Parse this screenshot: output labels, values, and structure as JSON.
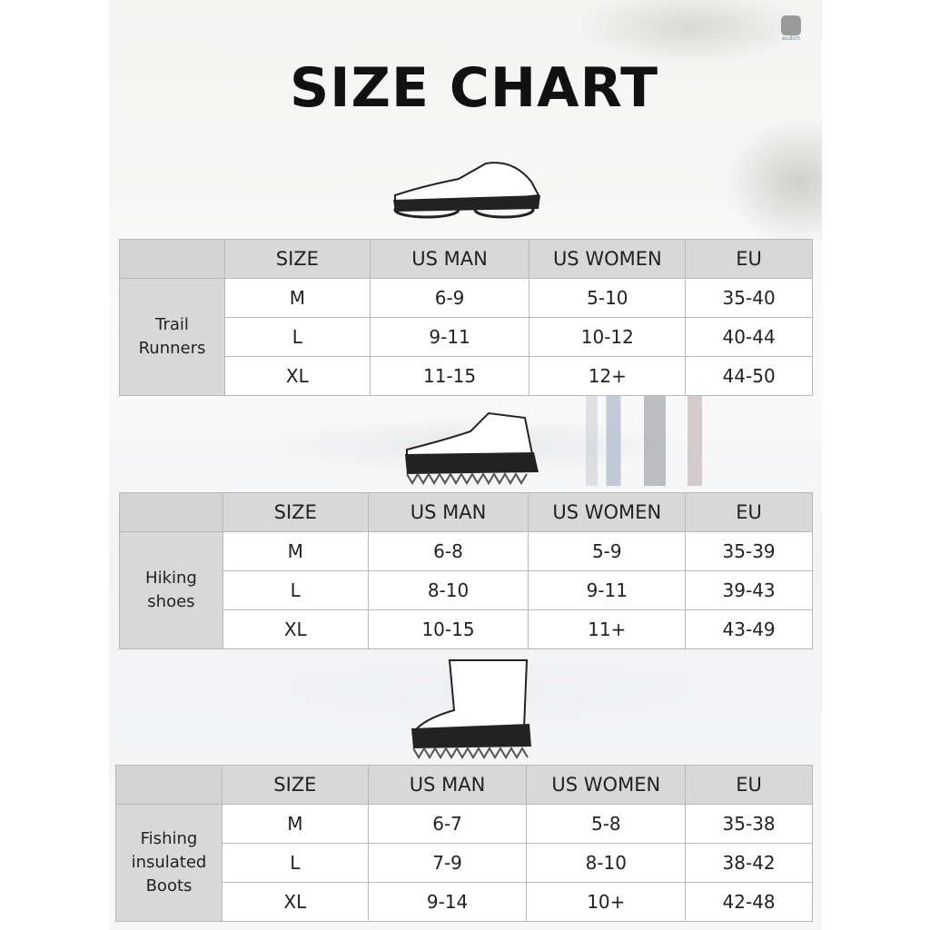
{
  "title": "SIZE CHART",
  "logo": {
    "text": "eudich"
  },
  "headers": [
    "SIZE",
    "US MAN",
    "US WOMEN",
    "EU"
  ],
  "tables": [
    {
      "category": "Trail Runners",
      "icon": "trail-runner-crampon",
      "rows": [
        {
          "size": "M",
          "us_man": "6-9",
          "us_women": "5-10",
          "eu": "35-40"
        },
        {
          "size": "L",
          "us_man": "9-11",
          "us_women": "10-12",
          "eu": "40-44"
        },
        {
          "size": "XL",
          "us_man": "11-15",
          "us_women": "12+",
          "eu": "44-50"
        }
      ]
    },
    {
      "category": "Hiking shoes",
      "icon": "hiking-shoe-crampon",
      "rows": [
        {
          "size": "M",
          "us_man": "6-8",
          "us_women": "5-9",
          "eu": "35-39"
        },
        {
          "size": "L",
          "us_man": "8-10",
          "us_women": "9-11",
          "eu": "39-43"
        },
        {
          "size": "XL",
          "us_man": "10-15",
          "us_women": "11+",
          "eu": "43-49"
        }
      ]
    },
    {
      "category": "Fishing insulated Boots",
      "icon": "boot-crampon",
      "rows": [
        {
          "size": "M",
          "us_man": "6-7",
          "us_women": "5-8",
          "eu": "35-38"
        },
        {
          "size": "L",
          "us_man": "7-9",
          "us_women": "8-10",
          "eu": "38-42"
        },
        {
          "size": "XL",
          "us_man": "9-14",
          "us_women": "10+",
          "eu": "42-48"
        }
      ]
    }
  ]
}
